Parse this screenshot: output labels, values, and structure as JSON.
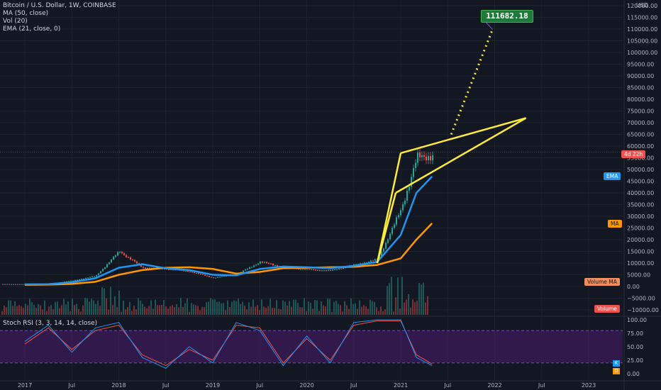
{
  "legend": {
    "symbol": "Bitcoin / U.S. Dollar, 1W, COINBASE",
    "ma": "MA (50, close)",
    "vol": "Vol (20)",
    "ema": "EMA (21, close, 0)"
  },
  "rsi_legend": "Stoch RSI (3, 3, 14, 14, close)",
  "currency": "USD",
  "target_label": "111682.18",
  "tags": {
    "countdown": "4d 22h",
    "ema": "EMA",
    "ma": "MA",
    "volume_ma": "Volume MA",
    "volume": "Volume",
    "k": "K",
    "d": "D"
  },
  "colors": {
    "background": "#131722",
    "bull": "#26a69a",
    "bear": "#ef5350",
    "ema": "#2196f3",
    "ma": "#ff9800",
    "pattern": "#ffeb3b",
    "rsi_band": "#4a1b6e",
    "rsi_k": "#2196f3",
    "rsi_d": "#ef5350",
    "target": "#1e7a3a"
  },
  "chart_data": [
    {
      "type": "line",
      "title": "Bitcoin / U.S. Dollar, 1W, COINBASE",
      "y_axis_ticks": [
        "120000.00",
        "115000.00",
        "110000.00",
        "105000.00",
        "100000.00",
        "95000.00",
        "90000.00",
        "85000.00",
        "80000.00",
        "75000.00",
        "70000.00",
        "65000.00",
        "60000.00",
        "55000.00",
        "50000.00",
        "45000.00",
        "40000.00",
        "35000.00",
        "30000.00",
        "25000.00",
        "20000.00",
        "15000.00",
        "10000.00",
        "5000.00",
        "0.00",
        "−5000.00",
        "−10000.00"
      ],
      "x_axis_ticks": [
        "2017",
        "Jul",
        "2018",
        "Jul",
        "2019",
        "Jul",
        "2020",
        "Jul",
        "2021",
        "Jul",
        "2022",
        "Jul",
        "2023"
      ],
      "x": [
        "2017-01",
        "2017-04",
        "2017-07",
        "2017-10",
        "2018-01",
        "2018-04",
        "2018-07",
        "2018-10",
        "2019-01",
        "2019-04",
        "2019-07",
        "2019-10",
        "2020-01",
        "2020-04",
        "2020-07",
        "2020-10",
        "2021-01",
        "2021-03",
        "2021-05"
      ],
      "series": [
        {
          "name": "Close",
          "values": [
            1000,
            1200,
            2500,
            4500,
            15000,
            8000,
            7500,
            6400,
            3700,
            5200,
            10500,
            8200,
            7200,
            6800,
            9200,
            11500,
            33000,
            55000,
            56000
          ]
        },
        {
          "name": "EMA",
          "values": [
            900,
            1000,
            1800,
            3500,
            8000,
            9500,
            7800,
            7000,
            5000,
            4800,
            7500,
            8500,
            8200,
            7800,
            8800,
            10500,
            22000,
            40000,
            47000
          ]
        },
        {
          "name": "MA",
          "values": [
            700,
            800,
            1100,
            2000,
            5000,
            7000,
            8000,
            8200,
            7500,
            5500,
            6200,
            7800,
            8000,
            8200,
            8400,
            9200,
            12000,
            20000,
            27000
          ]
        }
      ],
      "annotations": {
        "pattern_apex": {
          "date": "2022-05",
          "price": 72000
        },
        "projection_target": 111682.18,
        "last_price": 57500
      }
    },
    {
      "type": "line",
      "title": "Stoch RSI (3, 3, 14, 14, close)",
      "y_axis_ticks": [
        "100.00",
        "75.00",
        "50.00",
        "25.00",
        "0.00"
      ],
      "upper_band": 80,
      "lower_band": 20,
      "series": [
        {
          "name": "K",
          "values": [
            60,
            90,
            40,
            85,
            95,
            30,
            10,
            50,
            20,
            95,
            80,
            15,
            70,
            20,
            95,
            100,
            100,
            30,
            15
          ]
        },
        {
          "name": "D",
          "values": [
            55,
            85,
            45,
            80,
            90,
            35,
            15,
            45,
            25,
            90,
            85,
            20,
            65,
            25,
            90,
            98,
            98,
            35,
            18
          ]
        }
      ]
    }
  ]
}
